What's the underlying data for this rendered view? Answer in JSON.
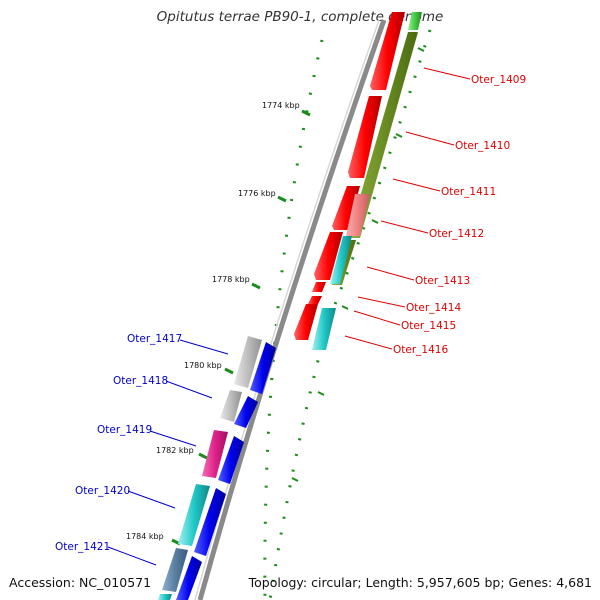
{
  "title": "Opitutus terrae PB90-1, complete genome",
  "footer": {
    "accession": "Accession: NC_010571",
    "topology": "Topology: circular; Length: 5,957,605 bp; Genes: 4,681"
  },
  "colors": {
    "backbone": "#8a8a8a",
    "tick": "#1a8c1a",
    "red": "#ff1010",
    "pink": "#f08080",
    "olive": "#6b8e23",
    "green": "#44cc44",
    "cyan": "#20c8c8",
    "blue": "#0000ee",
    "gray": "#bdbdbd",
    "magenta": "#e0208a",
    "steel": "#5a7fa0",
    "label_red": "#dd0000",
    "label_blue": "#0000cc"
  },
  "scale_labels": [
    "1774 kbp",
    "1776 kbp",
    "1778 kbp",
    "1780 kbp",
    "1782 kbp",
    "1784 kbp"
  ],
  "genes_right": [
    "Oter_1409",
    "Oter_1410",
    "Oter_1411",
    "Oter_1412",
    "Oter_1413",
    "Oter_1414",
    "Oter_1415",
    "Oter_1416"
  ],
  "genes_left": [
    "Oter_1417",
    "Oter_1418",
    "Oter_1419",
    "Oter_1420",
    "Oter_1421"
  ]
}
